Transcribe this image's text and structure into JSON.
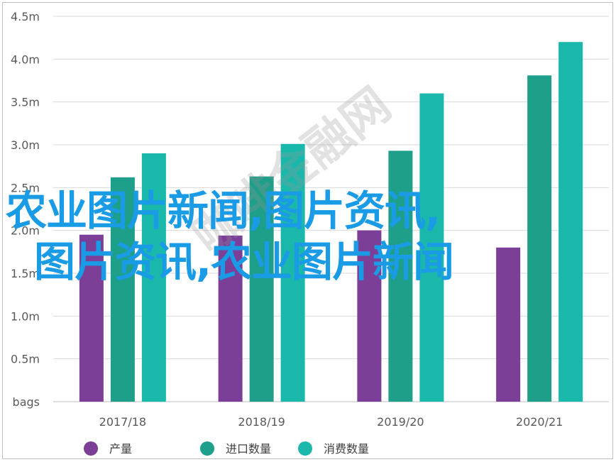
{
  "chart_data": {
    "type": "bar",
    "categories": [
      "2017/18",
      "2018/19",
      "2019/20",
      "2020/21"
    ],
    "series": [
      {
        "name": "产量",
        "color": "#7b3f98",
        "values": [
          1.95,
          1.94,
          2.0,
          1.8
        ]
      },
      {
        "name": "进口数量",
        "color": "#1e9f8a",
        "values": [
          2.62,
          2.63,
          2.93,
          3.81
        ]
      },
      {
        "name": "消费数量",
        "color": "#1ab8aa",
        "values": [
          2.9,
          3.01,
          3.6,
          4.2
        ]
      }
    ],
    "y_ticks": [
      "bags",
      "0.5m",
      "1.0m",
      "1.5m",
      "2.0m",
      "2.5m",
      "3.0m",
      "3.5m",
      "4.0m",
      "4.5m"
    ],
    "ylim": [
      0,
      4.5
    ],
    "grid": true,
    "legend_position": "bottom"
  },
  "overlay": {
    "line1": "农业图片新闻,图片资讯,",
    "line2": "图片资讯,农业图片新闻"
  },
  "watermark": {
    "text": "咖啡金融网"
  }
}
